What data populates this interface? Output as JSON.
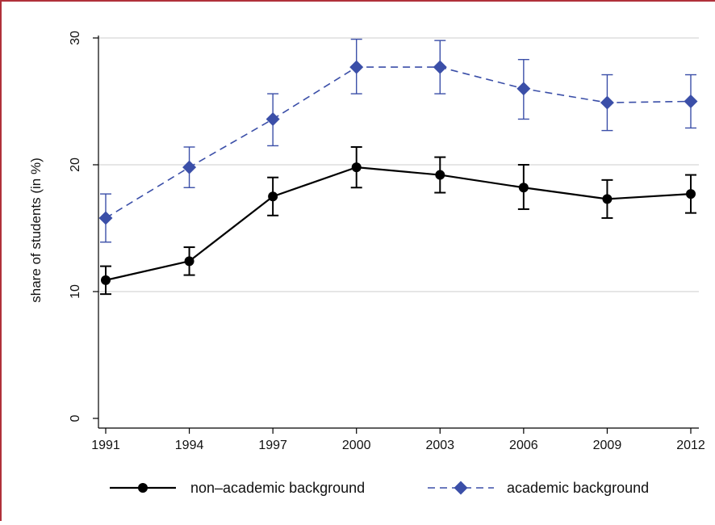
{
  "chart_data": {
    "type": "line",
    "x": [
      1991,
      1994,
      1997,
      2000,
      2003,
      2006,
      2009,
      2012
    ],
    "x_tick_labels": [
      "1991",
      "1994",
      "1997",
      "2000",
      "2003",
      "2006",
      "2009",
      "2012"
    ],
    "ylabel": "share of students (in %)",
    "y_ticks": [
      0,
      10,
      20,
      30
    ],
    "y_tick_labels": [
      "0",
      "10",
      "20",
      "30"
    ],
    "ylim": [
      0,
      30
    ],
    "grid": "horizontal",
    "legend_position": "bottom",
    "series": [
      {
        "name": "non–academic background",
        "color": "#000000",
        "line_style": "solid",
        "marker": "circle",
        "values": [
          10.9,
          12.4,
          17.5,
          19.8,
          19.2,
          18.2,
          17.3,
          17.7
        ],
        "ci_low": [
          9.8,
          11.3,
          16.0,
          18.2,
          17.8,
          16.5,
          15.8,
          16.2
        ],
        "ci_high": [
          12.0,
          13.5,
          19.0,
          21.4,
          20.6,
          20.0,
          18.8,
          19.2
        ]
      },
      {
        "name": "academic background",
        "color": "#3b4fa8",
        "line_style": "dashed",
        "marker": "diamond",
        "values": [
          15.8,
          19.8,
          23.6,
          27.7,
          27.7,
          26.0,
          24.9,
          25.0
        ],
        "ci_low": [
          13.9,
          18.2,
          21.5,
          25.6,
          25.6,
          23.6,
          22.7,
          22.9
        ],
        "ci_high": [
          17.7,
          21.4,
          25.6,
          29.9,
          29.8,
          28.3,
          27.1,
          27.1
        ]
      }
    ]
  }
}
